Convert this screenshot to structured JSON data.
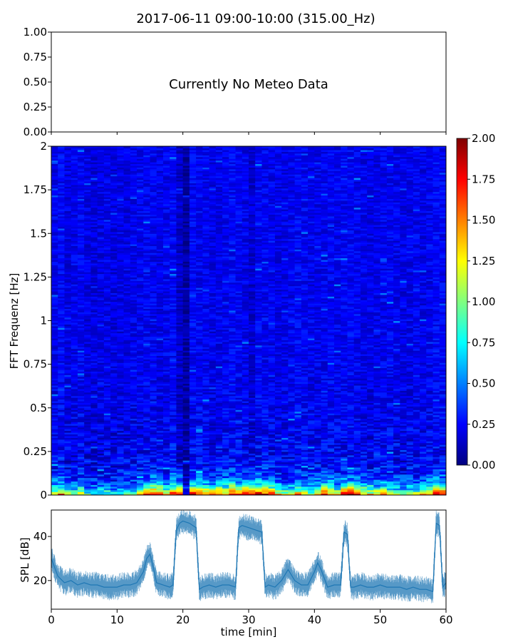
{
  "figure": {
    "title": "2017-06-11 09:00-10:00 (315.00_Hz)"
  },
  "chart_data": [
    {
      "type": "line",
      "panel": "meteo",
      "annotation": "Currently No Meteo Data",
      "ylim": [
        0,
        1
      ],
      "yticks": [
        "0.00",
        "0.25",
        "0.50",
        "0.75",
        "1.00"
      ],
      "series": []
    },
    {
      "type": "heatmap",
      "panel": "spectrogram",
      "ylabel": "FFT Frequenz [Hz]",
      "ylim": [
        0,
        2
      ],
      "xlim": [
        0,
        60
      ],
      "yticks": [
        "0",
        "0.25",
        "0.5",
        "0.75",
        "1",
        "1.25",
        "1.5",
        "1.75",
        "2"
      ],
      "colormap": "jet",
      "colorbar": {
        "vmin": 0,
        "vmax": 2,
        "ticks": [
          "0.00",
          "0.25",
          "0.50",
          "0.75",
          "1.00",
          "1.25",
          "1.50",
          "1.75",
          "2.00"
        ]
      },
      "time_bins_min": [
        0,
        1,
        2,
        3,
        4,
        5,
        6,
        7,
        8,
        9,
        10,
        11,
        12,
        13,
        14,
        15,
        16,
        17,
        18,
        19,
        20,
        21,
        22,
        23,
        24,
        25,
        26,
        27,
        28,
        29,
        30,
        31,
        32,
        33,
        34,
        35,
        36,
        37,
        38,
        39,
        40,
        41,
        42,
        43,
        44,
        45,
        46,
        47,
        48,
        49,
        50,
        51,
        52,
        53,
        54,
        55,
        56,
        57,
        58,
        59
      ],
      "low_freq_intensity": [
        1.3,
        1.6,
        1.1,
        1.0,
        1.2,
        0.9,
        0.8,
        0.9,
        1.0,
        0.8,
        0.9,
        1.0,
        0.9,
        1.2,
        1.6,
        1.9,
        1.7,
        1.4,
        1.9,
        2.0,
        0.4,
        1.9,
        1.8,
        1.6,
        1.5,
        1.7,
        1.6,
        2.0,
        1.8,
        2.0,
        2.0,
        2.0,
        1.9,
        1.7,
        1.4,
        1.1,
        1.2,
        1.5,
        1.3,
        1.1,
        1.4,
        1.8,
        1.6,
        1.3,
        2.0,
        2.0,
        1.8,
        1.5,
        1.3,
        1.2,
        1.4,
        1.2,
        1.1,
        1.0,
        1.1,
        1.2,
        1.3,
        1.4,
        2.0,
        1.9
      ],
      "background_intensity": [
        0.22,
        0.24,
        0.2,
        0.21,
        0.23,
        0.2,
        0.19,
        0.2,
        0.21,
        0.19,
        0.2,
        0.2,
        0.21,
        0.22,
        0.23,
        0.22,
        0.21,
        0.22,
        0.24,
        0.14,
        0.06,
        0.24,
        0.23,
        0.22,
        0.2,
        0.21,
        0.22,
        0.24,
        0.23,
        0.21,
        0.16,
        0.24,
        0.23,
        0.22,
        0.2,
        0.21,
        0.22,
        0.24,
        0.23,
        0.22,
        0.21,
        0.22,
        0.23,
        0.22,
        0.23,
        0.24,
        0.22,
        0.21,
        0.2,
        0.21,
        0.22,
        0.23,
        0.21,
        0.2,
        0.21,
        0.22,
        0.21,
        0.22,
        0.25,
        0.24
      ]
    },
    {
      "type": "line",
      "panel": "spl",
      "ylabel": "SPL [dB]",
      "xlabel": "time [min]",
      "xlim": [
        0,
        60
      ],
      "ylim": [
        7,
        52
      ],
      "yticks": [
        "20",
        "40"
      ],
      "xticks": [
        "0",
        "10",
        "20",
        "30",
        "40",
        "50",
        "60"
      ],
      "color": "#1f77b4",
      "series": [
        {
          "x": [
            0,
            1,
            2,
            3,
            4,
            5,
            6,
            7,
            8,
            9,
            10,
            11,
            12,
            13,
            14,
            14.5,
            15,
            15.5,
            16,
            17,
            18,
            18.5,
            19,
            19.5,
            20,
            21,
            22,
            22.5,
            23,
            24,
            25,
            26,
            27,
            28,
            28.5,
            29,
            30,
            31,
            32,
            32.5,
            33,
            34,
            35,
            36,
            37,
            38,
            39,
            40,
            40.5,
            41,
            42,
            43,
            44,
            44.5,
            45,
            45.5,
            46,
            47,
            48,
            49,
            50,
            51,
            52,
            53,
            54,
            55,
            56,
            57,
            58,
            58.5,
            59,
            59.5,
            60
          ],
          "y": [
            30,
            22,
            19,
            20,
            18,
            19,
            18,
            18,
            17,
            17,
            17,
            18,
            18,
            19,
            24,
            30,
            32,
            26,
            19,
            18,
            17,
            18,
            43,
            46,
            47,
            46,
            44,
            16,
            17,
            18,
            17,
            18,
            18,
            17,
            44,
            45,
            44,
            43,
            42,
            17,
            18,
            17,
            20,
            25,
            20,
            18,
            18,
            24,
            28,
            25,
            17,
            18,
            18,
            42,
            41,
            17,
            17,
            18,
            17,
            17,
            18,
            17,
            17,
            17,
            16,
            17,
            16,
            16,
            15,
            46,
            45,
            17,
            19
          ]
        }
      ]
    }
  ]
}
